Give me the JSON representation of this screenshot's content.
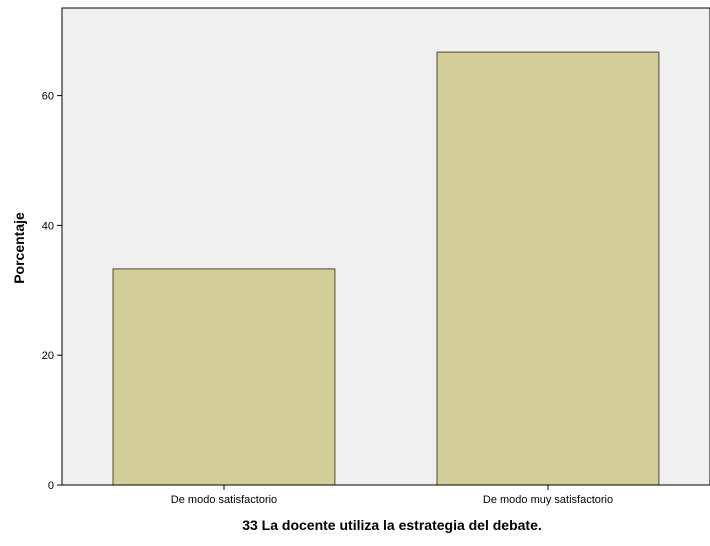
{
  "chart_data": {
    "type": "bar",
    "title": "",
    "xlabel": "33 La docente utiliza la estrategia del debate.",
    "ylabel": "Porcentaje",
    "categories": [
      "De modo satisfactorio",
      "De modo muy satisfactorio"
    ],
    "values": [
      33.3,
      66.7
    ],
    "ylim": [
      0,
      73.5
    ],
    "yticks": [
      0,
      20,
      40,
      60
    ],
    "grid": false,
    "legend": "none",
    "colors": {
      "bar_fill": "#d3ce98",
      "bar_stroke": "#4a4a3a",
      "plot_background": "#f0f0f0",
      "axis": "#000000"
    }
  }
}
